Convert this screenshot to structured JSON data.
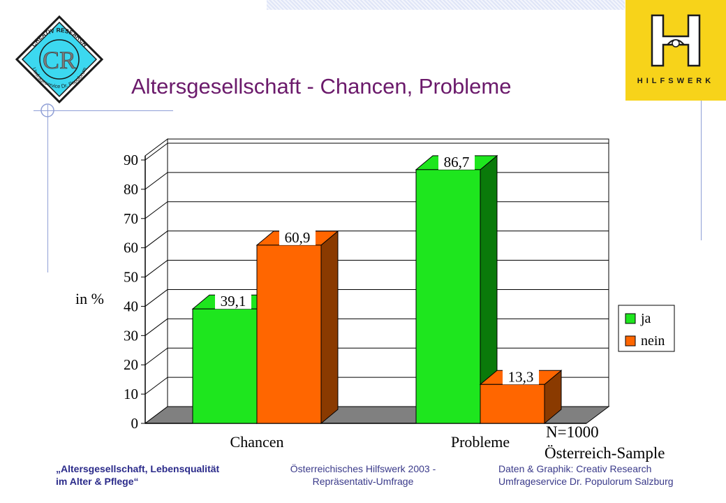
{
  "header": {
    "title": "Altersgesellschaft - Chancen, Probleme"
  },
  "logos": {
    "creativ_research": {
      "initials": "CR",
      "ring_top": "CREATIV RESEARCH",
      "ring_bottom": "Umfrageservice Dr. Populorum"
    },
    "hilfswerk": {
      "letter": "H",
      "text": "HILFSWERK"
    }
  },
  "colors": {
    "ja": "#1ee61e",
    "nein": "#ff6600",
    "title": "#6b1a6b",
    "logo_yellow": "#f7d31a"
  },
  "chart_data": {
    "type": "bar",
    "categories": [
      "Chancen",
      "Probleme"
    ],
    "series": [
      {
        "name": "ja",
        "values": [
          39.1,
          86.7
        ]
      },
      {
        "name": "nein",
        "values": [
          60.9,
          13.3
        ]
      }
    ],
    "data_labels": [
      [
        "39,1",
        "86,7"
      ],
      [
        "60,9",
        "13,3"
      ]
    ],
    "ylabel": "in %",
    "yticks": [
      "0",
      "10",
      "20",
      "30",
      "40",
      "50",
      "60",
      "70",
      "80",
      "90"
    ],
    "ylim": [
      0,
      90
    ],
    "legend_position": "right",
    "grid": true,
    "annotation": [
      "N=1000",
      "Österreich-Sample"
    ],
    "style": "3d"
  },
  "footer": {
    "left": [
      "„Altersgesellschaft, Lebensqualität",
      "im Alter & Pflege“"
    ],
    "center": [
      "Österreichisches Hilfswerk 2003 -",
      "Repräsentativ-Umfrage"
    ],
    "right": [
      "Daten & Graphik: Creativ Research",
      "Umfrageservice Dr. Populorum Salzburg"
    ]
  }
}
